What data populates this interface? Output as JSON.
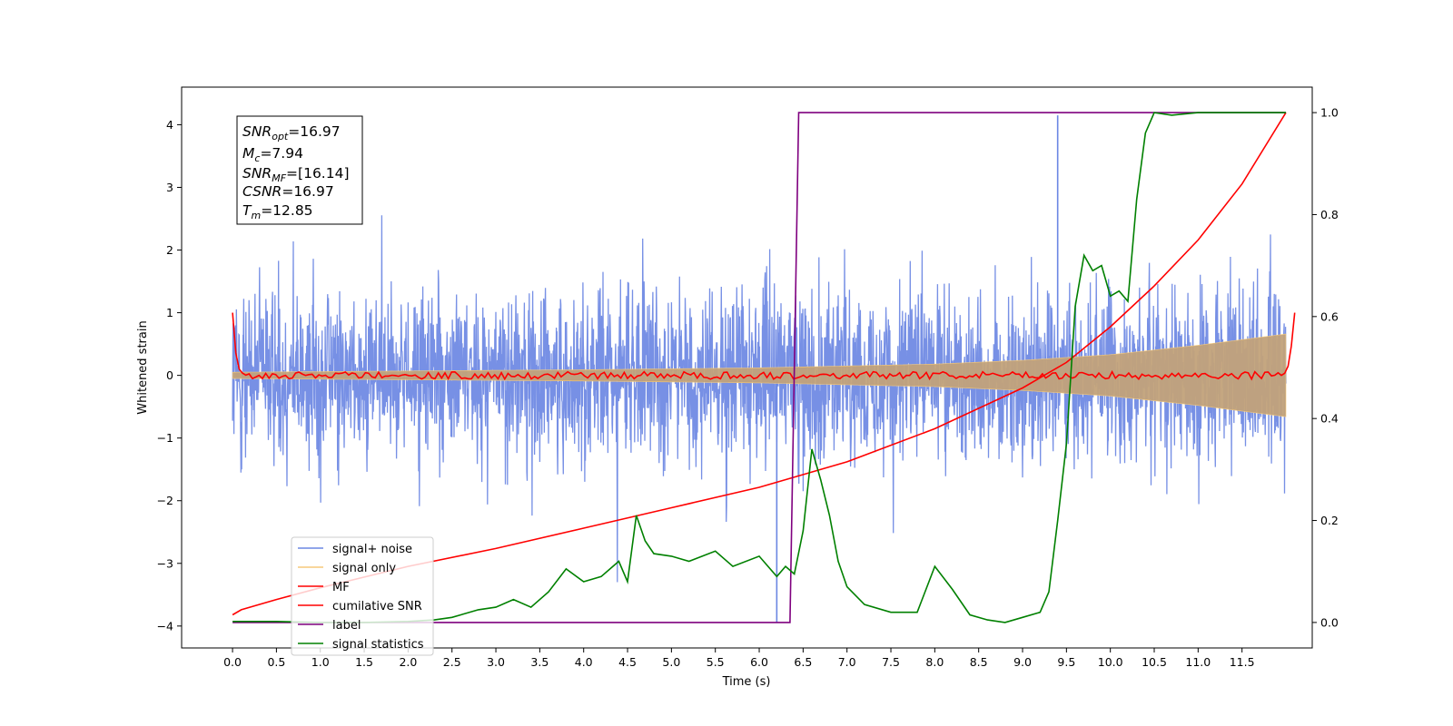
{
  "chart_data": {
    "type": "line",
    "title": "",
    "xlabel": "Time (s)",
    "ylabel": "Whitened strain",
    "xlim": [
      -0.58,
      12.3
    ],
    "ylim": [
      -4.35,
      4.6
    ],
    "y2lim": [
      -0.05,
      1.05
    ],
    "x_ticks": [
      "0.0",
      "0.5",
      "1.0",
      "1.5",
      "2.0",
      "2.5",
      "3.0",
      "3.5",
      "4.0",
      "4.5",
      "5.0",
      "5.5",
      "6.0",
      "6.5",
      "7.0",
      "7.5",
      "8.0",
      "8.5",
      "9.0",
      "9.5",
      "10.0",
      "10.5",
      "11.0",
      "11.5"
    ],
    "y_ticks": [
      "4",
      "3",
      "2",
      "1",
      "0",
      "−1",
      "−2",
      "−3",
      "−4"
    ],
    "y2_ticks": [
      "1.0",
      "0.8",
      "0.6",
      "0.4",
      "0.2",
      "0.0"
    ],
    "grid": false,
    "legend_position": "lower-left",
    "info_box": {
      "snr_opt": {
        "base": "SNR",
        "sub": "opt",
        "value": "=16.97"
      },
      "mc": {
        "base": "M",
        "sub": "c",
        "value": "=7.94"
      },
      "snr_mf": {
        "base": "SNR",
        "sub": "MF",
        "value": "=[16.14]"
      },
      "csnr": {
        "base": "CSNR",
        "value": "=16.97"
      },
      "tm": {
        "base": "T",
        "sub": "m",
        "value": "=12.85"
      }
    },
    "series": [
      {
        "name": "signal+ noise",
        "axis": "left",
        "color": "#6b87e3",
        "description_of_envelope": {
          "x_range": [
            0.0,
            12.0
          ],
          "typical_band": [
            -1.9,
            1.9
          ],
          "max_peak": 4.15,
          "max_peak_x": 9.4,
          "min_peak": -3.95,
          "min_peak_x": 6.2
        }
      },
      {
        "name": "signal only",
        "axis": "left",
        "color": "#f5c97a",
        "amplitude_envelope": {
          "x": [
            0.0,
            2.0,
            4.0,
            6.0,
            8.0,
            9.0,
            10.0,
            11.0,
            12.0
          ],
          "amp": [
            0.05,
            0.07,
            0.09,
            0.12,
            0.18,
            0.24,
            0.33,
            0.48,
            0.66
          ]
        }
      },
      {
        "name": "MF",
        "axis": "left",
        "color": "#ff0000",
        "x": [
          0.0,
          0.05,
          0.1,
          0.15,
          12.0,
          12.05,
          12.1
        ],
        "y": [
          1.0,
          0.15,
          0.05,
          0.0,
          0.0,
          0.3,
          1.0
        ],
        "noise_band": 0.06
      },
      {
        "name": "cumilative SNR",
        "axis": "right",
        "color": "#ff0000",
        "x": [
          0.0,
          0.1,
          0.5,
          1.0,
          2.0,
          3.0,
          4.0,
          5.0,
          6.0,
          7.0,
          8.0,
          9.0,
          9.5,
          10.0,
          10.5,
          11.0,
          11.5,
          12.0
        ],
        "y": [
          0.015,
          0.025,
          0.045,
          0.068,
          0.11,
          0.145,
          0.185,
          0.225,
          0.265,
          0.315,
          0.38,
          0.46,
          0.51,
          0.58,
          0.66,
          0.75,
          0.86,
          1.0
        ]
      },
      {
        "name": "label",
        "axis": "right",
        "color": "#7f007f",
        "x": [
          0.0,
          6.35,
          6.45,
          12.0
        ],
        "y": [
          0.0,
          0.0,
          1.0,
          1.0
        ]
      },
      {
        "name": "signal statistics",
        "axis": "right",
        "color": "#008000",
        "x": [
          0.0,
          0.5,
          1.0,
          1.5,
          2.0,
          2.3,
          2.5,
          2.8,
          3.0,
          3.2,
          3.4,
          3.6,
          3.8,
          4.0,
          4.2,
          4.4,
          4.5,
          4.6,
          4.7,
          4.8,
          5.0,
          5.2,
          5.5,
          5.7,
          6.0,
          6.2,
          6.3,
          6.4,
          6.5,
          6.6,
          6.7,
          6.8,
          6.9,
          7.0,
          7.2,
          7.5,
          7.8,
          8.0,
          8.2,
          8.4,
          8.6,
          8.8,
          9.0,
          9.2,
          9.3,
          9.4,
          9.5,
          9.6,
          9.7,
          9.8,
          9.9,
          10.0,
          10.1,
          10.2,
          10.3,
          10.4,
          10.5,
          10.7,
          11.0,
          11.5,
          12.0
        ],
        "y": [
          0.002,
          0.002,
          0.0,
          0.0,
          0.002,
          0.005,
          0.01,
          0.025,
          0.03,
          0.045,
          0.03,
          0.06,
          0.105,
          0.08,
          0.09,
          0.12,
          0.08,
          0.21,
          0.16,
          0.135,
          0.13,
          0.12,
          0.14,
          0.11,
          0.13,
          0.09,
          0.11,
          0.095,
          0.18,
          0.34,
          0.28,
          0.21,
          0.12,
          0.07,
          0.035,
          0.02,
          0.02,
          0.11,
          0.065,
          0.015,
          0.005,
          0.0,
          0.01,
          0.02,
          0.06,
          0.2,
          0.35,
          0.62,
          0.72,
          0.69,
          0.7,
          0.64,
          0.65,
          0.63,
          0.83,
          0.96,
          1.0,
          0.995,
          1.0,
          1.0,
          1.0
        ]
      }
    ]
  }
}
